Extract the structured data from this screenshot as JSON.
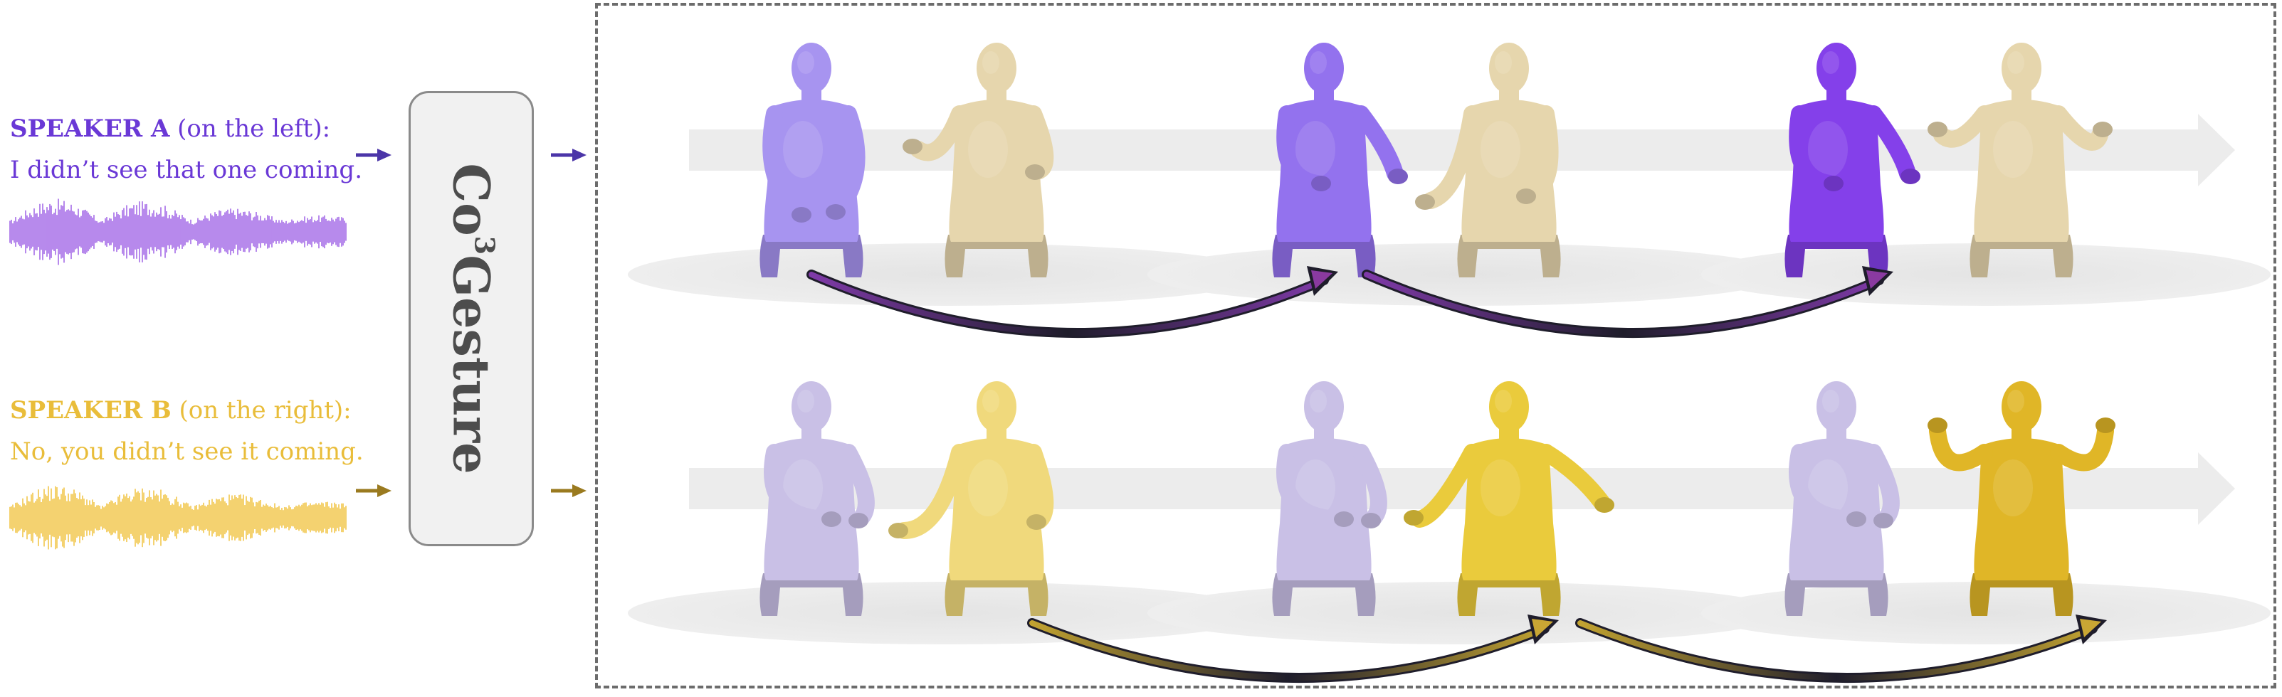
{
  "speaker_a": {
    "name": "SPEAKER A",
    "position": "(on the left):",
    "utterance": "I didn’t see that one coming.",
    "color": "#6a38d6",
    "waveform_color": "#a56ce8",
    "arrow_color": "#4b35a8"
  },
  "speaker_b": {
    "name": "SPEAKER B",
    "position": "(on the right):",
    "utterance": "No, you didn’t see it coming.",
    "color": "#e9bd3a",
    "waveform_color": "#f2c64c",
    "arrow_color": "#9a7a1f"
  },
  "model": {
    "name_prefix": "Co",
    "name_superscript": "3",
    "name_suffix": "Gesture"
  },
  "output": {
    "rows": [
      {
        "row_id": "speaker-a-active",
        "figures": [
          {
            "speaker": "A",
            "shade": "#a794f0",
            "pose": "hands-on-knee"
          },
          {
            "speaker": "B",
            "shade": "#e6d6ad",
            "pose": "arms-raised-low"
          },
          {
            "speaker": "A",
            "shade": "#9372ee",
            "pose": "hand-gesture-right"
          },
          {
            "speaker": "B",
            "shade": "#e6d6ad",
            "pose": "palms-up"
          },
          {
            "speaker": "A",
            "shade": "#8440ea",
            "pose": "hand-gesture-right"
          },
          {
            "speaker": "B",
            "shade": "#e6d6ad",
            "pose": "hands-raised"
          }
        ],
        "arrow_gradient": [
          "#7f3aa8",
          "#1f1d2b"
        ]
      },
      {
        "row_id": "speaker-b-active",
        "figures": [
          {
            "speaker": "A",
            "shade": "#c9c0e6",
            "pose": "hands-together"
          },
          {
            "speaker": "B",
            "shade": "#f0d97c",
            "pose": "palms-open"
          },
          {
            "speaker": "A",
            "shade": "#c9c0e6",
            "pose": "hands-together"
          },
          {
            "speaker": "B",
            "shade": "#eacb3c",
            "pose": "arms-spread"
          },
          {
            "speaker": "A",
            "shade": "#c9c0e6",
            "pose": "hands-together"
          },
          {
            "speaker": "B",
            "shade": "#e0b627",
            "pose": "both-hands-up"
          }
        ],
        "arrow_gradient": [
          "#c2a331",
          "#1f1d2b"
        ]
      }
    ]
  },
  "icons": {
    "arrow": "arrow-right-icon",
    "waveform": "audio-waveform-icon",
    "timeline": "timeline-arrow-icon"
  }
}
